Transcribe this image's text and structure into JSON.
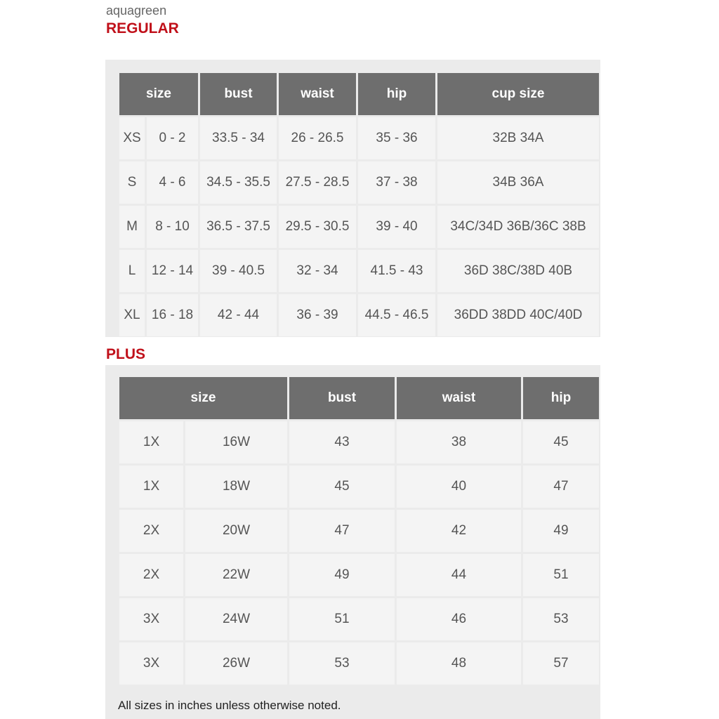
{
  "brand": "aquagreen",
  "regular": {
    "title": "REGULAR",
    "headers": [
      "size",
      "bust",
      "waist",
      "hip",
      "cup size"
    ],
    "rows": [
      [
        "XS",
        "0 - 2",
        "33.5 - 34",
        "26 - 26.5",
        "35 - 36",
        "32B 34A"
      ],
      [
        "S",
        "4 - 6",
        "34.5 - 35.5",
        "27.5 - 28.5",
        "37 - 38",
        "34B 36A"
      ],
      [
        "M",
        "8 - 10",
        "36.5 - 37.5",
        "29.5 - 30.5",
        "39 - 40",
        "34C/34D 36B/36C 38B"
      ],
      [
        "L",
        "12 - 14",
        "39 - 40.5",
        "32 - 34",
        "41.5 - 43",
        "36D 38C/38D 40B"
      ],
      [
        "XL",
        "16 - 18",
        "42 - 44",
        "36 - 39",
        "44.5 - 46.5",
        "36DD 38DD 40C/40D"
      ]
    ]
  },
  "plus": {
    "title": "PLUS",
    "headers": [
      "size",
      "bust",
      "waist",
      "hip"
    ],
    "rows": [
      [
        "1X",
        "16W",
        "43",
        "38",
        "45"
      ],
      [
        "1X",
        "18W",
        "45",
        "40",
        "47"
      ],
      [
        "2X",
        "20W",
        "47",
        "42",
        "49"
      ],
      [
        "2X",
        "22W",
        "49",
        "44",
        "51"
      ],
      [
        "3X",
        "24W",
        "51",
        "46",
        "53"
      ],
      [
        "3X",
        "26W",
        "53",
        "48",
        "57"
      ]
    ]
  },
  "note": "All sizes in inches unless otherwise noted."
}
